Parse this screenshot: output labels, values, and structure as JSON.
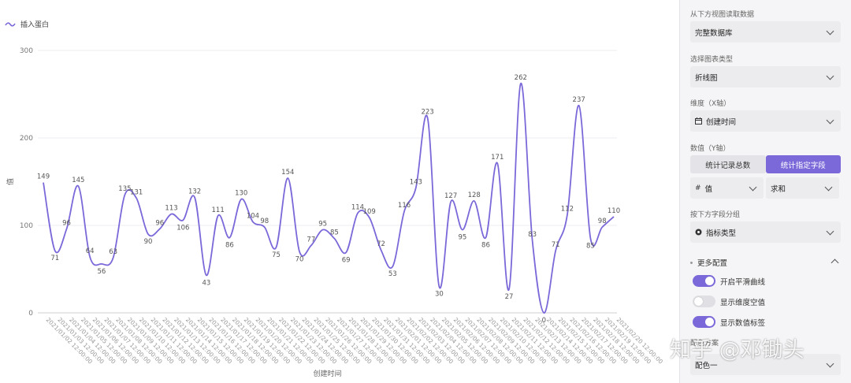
{
  "legend": {
    "icon": "wave-icon",
    "label": "插入蛋白"
  },
  "chart_data": {
    "type": "line",
    "smooth": true,
    "xlabel": "创建时间",
    "ylabel": "值",
    "ylim": [
      0,
      300
    ],
    "yticks": [
      0,
      100,
      200,
      300
    ],
    "grid": true,
    "line_color": "#7b68d9",
    "categories": [
      "2021/01/02 12:00:00",
      "2021/01/03 12:00:00",
      "2021/01/04 12:00:00",
      "2021/01/05 12:00:00",
      "2021/01/06 12:00:00",
      "2021/01/07 12:00:00",
      "2021/01/08 12:00:00",
      "2021/01/09 12:00:00",
      "2021/01/10 12:00:00",
      "2021/01/11 12:00:00",
      "2021/01/12 12:00:00",
      "2021/01/13 12:00:00",
      "2021/01/14 12:00:00",
      "2021/01/15 12:00:00",
      "2021/01/16 12:00:00",
      "2021/01/17 12:00:00",
      "2021/01/18 12:00:00",
      "2021/01/19 12:00:00",
      "2021/01/20 12:00:00",
      "2021/01/21 12:00:00",
      "2021/01/22 12:00:00",
      "2021/01/23 12:00:00",
      "2021/01/24 12:00:00",
      "2021/01/25 12:00:00",
      "2021/01/26 12:00:00",
      "2021/01/27 12:00:00",
      "2021/01/28 12:00:00",
      "2021/01/29 12:00:00",
      "2021/01/30 12:00:00",
      "2021/01/31 12:00:00",
      "2021/02/01 12:00:00",
      "2021/02/02 12:00:00",
      "2021/02/03 12:00:00",
      "2021/02/04 12:00:00",
      "2021/02/05 12:00:00",
      "2021/02/06 12:00:00",
      "2021/02/07 12:00:00",
      "2021/02/08 12:00:00",
      "2021/02/09 12:00:00",
      "2021/02/10 12:00:00",
      "2021/02/11 12:00:00",
      "2021/02/12 12:00:00",
      "2021/02/13 12:00:00",
      "2021/02/14 12:00:00",
      "2021/02/15 12:00:00",
      "2021/02/16 12:00:00",
      "2021/02/17 12:00:00",
      "2021/02/18 12:00:00",
      "2021/02/19 12:00:00",
      "2021/02/20 12:00:00"
    ],
    "values": [
      149,
      71,
      96,
      145,
      64,
      56,
      63,
      135,
      131,
      90,
      96,
      113,
      106,
      132,
      43,
      111,
      86,
      130,
      104,
      98,
      75,
      154,
      70,
      77,
      95,
      85,
      69,
      114,
      109,
      72,
      53,
      116,
      143,
      223,
      30,
      127,
      95,
      128,
      86,
      171,
      27,
      262,
      83,
      0,
      71,
      112,
      237,
      85,
      98,
      110
    ]
  },
  "panel": {
    "data_source_label": "从下方视图读取数据",
    "data_source_value": "完整数据库",
    "chart_type_label": "选择图表类型",
    "chart_type_value": "折线图",
    "dimension_label": "维度（X轴）",
    "dimension_icon": "calendar-icon",
    "dimension_value": "创建时间",
    "value_label": "数值（Y轴）",
    "btn_count": "统计记录总数",
    "btn_field": "统计指定字段",
    "field_prefix": "#",
    "field_value": "值",
    "agg_value": "求和",
    "group_label": "按下方字段分组",
    "group_icon": "circle-dot-icon",
    "group_value": "指标类型",
    "more_label": "更多配置",
    "toggle1": "开启平滑曲线",
    "toggle2": "显示维度空值",
    "toggle3": "显示数值标签",
    "palette_label": "配色方案",
    "palette_value": "配色一"
  },
  "watermark": "知乎 @邓锄头"
}
